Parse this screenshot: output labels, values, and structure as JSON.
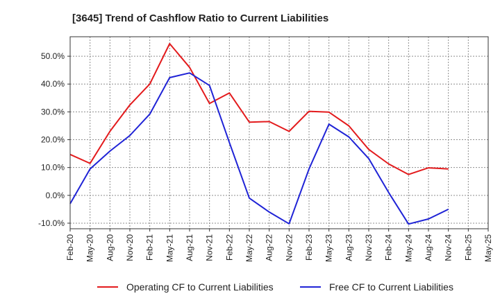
{
  "chart_data": {
    "type": "line",
    "title": "[3645]  Trend of Cashflow Ratio to Current Liabilities",
    "xlabel": "",
    "ylabel": "",
    "categories": [
      "Feb-20",
      "May-20",
      "Aug-20",
      "Nov-20",
      "Feb-21",
      "May-21",
      "Aug-21",
      "Nov-21",
      "Feb-22",
      "May-22",
      "Aug-22",
      "Nov-22",
      "Feb-23",
      "May-23",
      "Aug-23",
      "Nov-23",
      "Feb-24",
      "May-24",
      "Aug-24",
      "Nov-24",
      "Feb-25",
      "May-25"
    ],
    "x_tick_labels": [
      "Feb-20",
      "May-20",
      "Aug-20",
      "Nov-20",
      "Feb-21",
      "May-21",
      "Aug-21",
      "Nov-21",
      "Feb-22",
      "May-22",
      "Aug-22",
      "Nov-22",
      "Feb-23",
      "May-23",
      "Aug-23",
      "Nov-23",
      "Feb-24",
      "May-24",
      "Aug-24",
      "Nov-24",
      "Feb-25",
      "May-25"
    ],
    "y_tick_labels": [
      "50.0%",
      "40.0%",
      "30.0%",
      "20.0%",
      "10.0%",
      "0.0%",
      "-10.0%"
    ],
    "y_tick_values": [
      50,
      40,
      30,
      20,
      10,
      0,
      -10
    ],
    "ylim": [
      -12,
      57
    ],
    "grid": true,
    "legend_position": "bottom",
    "series": [
      {
        "name": "Operating CF to Current Liabilities",
        "color": "#e31a1c",
        "values": [
          14.7,
          11.5,
          23.0,
          32.5,
          40.0,
          54.5,
          46.0,
          33.0,
          36.8,
          26.3,
          26.5,
          23.0,
          30.2,
          29.9,
          25.0,
          16.5,
          11.3,
          7.5,
          9.9,
          9.5,
          null,
          null
        ]
      },
      {
        "name": "Free CF to Current Liabilities",
        "color": "#1f23d6",
        "values": [
          -3.0,
          9.5,
          15.9,
          21.5,
          29.2,
          42.3,
          44.0,
          39.5,
          19.0,
          -1.0,
          -6.0,
          -10.2,
          9.5,
          25.6,
          21.0,
          13.2,
          1.0,
          -10.3,
          -8.5,
          -5.0,
          null,
          null
        ]
      }
    ]
  }
}
